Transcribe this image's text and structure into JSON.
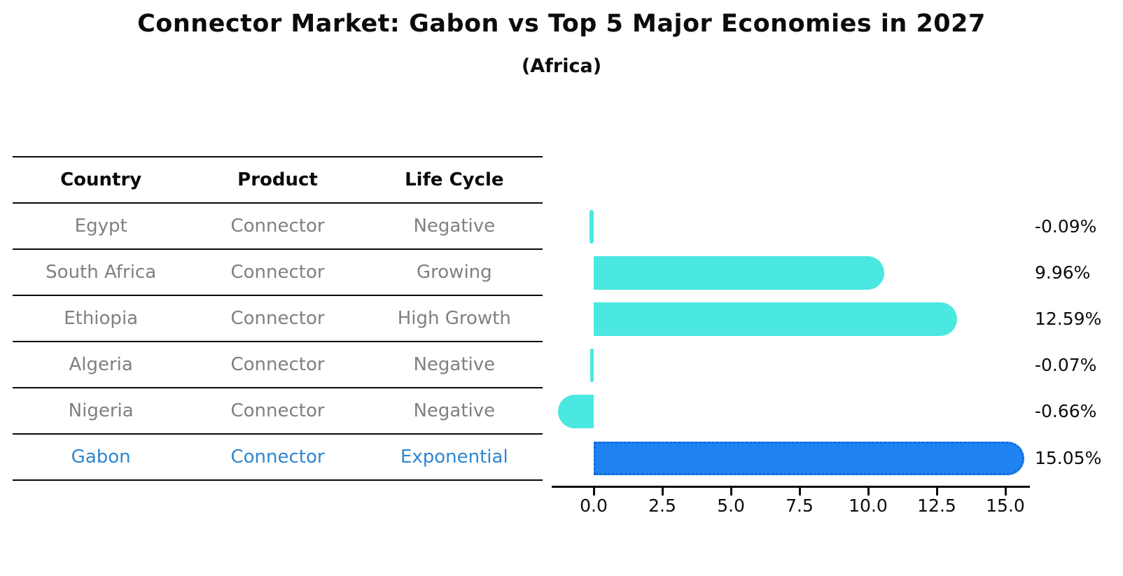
{
  "title": "Connector Market: Gabon vs Top 5 Major Economies in 2027",
  "subtitle": "(Africa)",
  "table": {
    "headers": [
      "Country",
      "Product",
      "Life Cycle"
    ],
    "rows": [
      {
        "country": "Egypt",
        "product": "Connector",
        "life_cycle": "Negative",
        "highlight": false
      },
      {
        "country": "South Africa",
        "product": "Connector",
        "life_cycle": "Growing",
        "highlight": false
      },
      {
        "country": "Ethiopia",
        "product": "Connector",
        "life_cycle": "High Growth",
        "highlight": false
      },
      {
        "country": "Algeria",
        "product": "Connector",
        "life_cycle": "Negative",
        "highlight": false
      },
      {
        "country": "Nigeria",
        "product": "Connector",
        "life_cycle": "Negative",
        "highlight": false
      },
      {
        "country": "Gabon",
        "product": "Connector",
        "life_cycle": "Exponential",
        "highlight": true
      }
    ]
  },
  "chart_data": {
    "type": "bar",
    "orientation": "horizontal",
    "title": "Connector Market: Gabon vs Top 5 Major Economies in 2027",
    "subtitle": "(Africa)",
    "categories": [
      "Egypt",
      "South Africa",
      "Ethiopia",
      "Algeria",
      "Nigeria",
      "Gabon"
    ],
    "values": [
      -0.09,
      9.96,
      12.59,
      -0.07,
      -0.66,
      15.05
    ],
    "value_labels": [
      "-0.09%",
      "9.96%",
      "12.59%",
      "-0.07%",
      "-0.66%",
      "15.05%"
    ],
    "unit": "%",
    "x_ticks": [
      "0.0",
      "2.5",
      "5.0",
      "7.5",
      "10.0",
      "12.5",
      "15.0"
    ],
    "x_tick_values": [
      0,
      2.5,
      5,
      7.5,
      10,
      12.5,
      15
    ],
    "xlim": [
      -1.6,
      16.0
    ],
    "highlight_category": "Gabon",
    "grid": false,
    "legend": false,
    "colors": {
      "default_bar": "#4AE8E0",
      "highlight_bar": "#1E82F0",
      "highlight_border": "#1468DC",
      "highlight_text": "#2E86D1",
      "row_text": "#808080",
      "axis": "#0a0a0a"
    }
  }
}
